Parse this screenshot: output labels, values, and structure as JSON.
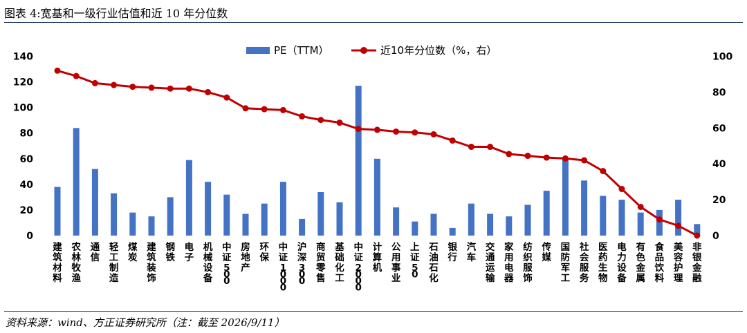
{
  "title": "图表 4:宽基和一级行业估值和近 10 年分位数",
  "source": "资料来源：wind、方正证券研究所（注：截至 2026/9/11）",
  "chart_data": {
    "type": "bar+line",
    "categories": [
      "建筑材料",
      "农林牧渔",
      "通信",
      "轻工制造",
      "煤炭",
      "建筑装饰",
      "钢铁",
      "电子",
      "机械设备",
      "中证500",
      "房地产",
      "环保",
      "中证1000",
      "沪深300",
      "商贸零售",
      "基础化工",
      "中证2000",
      "计算机",
      "公用事业",
      "上证50",
      "石油石化",
      "银行",
      "汽车",
      "交通运输",
      "家用电器",
      "纺织服饰",
      "传媒",
      "国防军工",
      "社会服务",
      "医药生物",
      "电力设备",
      "有色金属",
      "食品饮料",
      "美容护理",
      "非银金融"
    ],
    "series": [
      {
        "name": "PE（TTM）",
        "type": "bar",
        "axis": "left",
        "color": "#4472c4",
        "values": [
          38,
          84,
          52,
          33,
          18,
          15,
          30,
          59,
          42,
          32,
          17,
          25,
          42,
          13,
          34,
          26,
          117,
          60,
          22,
          11,
          17,
          6,
          25,
          17,
          15,
          24,
          35,
          60,
          43,
          31,
          28,
          18,
          20,
          28,
          9
        ]
      },
      {
        "name": "近10年分位数（%，右）",
        "type": "line",
        "axis": "right",
        "color": "#c00000",
        "values": [
          92,
          89,
          85,
          84,
          83,
          82.5,
          82,
          82,
          80,
          77,
          71,
          70.5,
          70,
          66.5,
          64.5,
          63,
          59.5,
          59,
          58,
          57.5,
          56.5,
          53,
          49.5,
          49.5,
          45.5,
          44.5,
          43.5,
          43,
          42,
          36,
          26,
          16,
          9,
          5.5,
          0
        ]
      }
    ],
    "yleft": {
      "ticks": [
        0,
        20,
        40,
        60,
        80,
        100,
        120,
        140
      ],
      "range": [
        0,
        140
      ]
    },
    "yright": {
      "ticks": [
        0,
        20,
        40,
        60,
        80,
        100
      ],
      "range": [
        0,
        100
      ]
    },
    "legend_position": "top-center",
    "grid": false
  }
}
